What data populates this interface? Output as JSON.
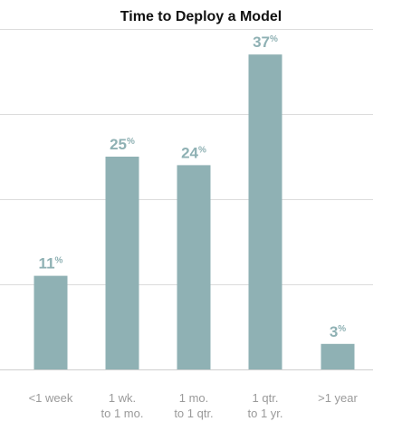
{
  "chart_data": {
    "type": "bar",
    "title": "Time to Deploy a Model",
    "categories": [
      [
        "<1 week"
      ],
      [
        "1 wk.",
        "to 1 mo."
      ],
      [
        "1 mo.",
        "to 1 qtr."
      ],
      [
        "1 qtr.",
        "to 1 yr."
      ],
      [
        ">1 year"
      ]
    ],
    "values": [
      11,
      25,
      24,
      37,
      3
    ],
    "value_suffix": "%",
    "ylim": [
      0,
      40
    ],
    "grid": true,
    "bar_color": "#8fb1b4"
  }
}
